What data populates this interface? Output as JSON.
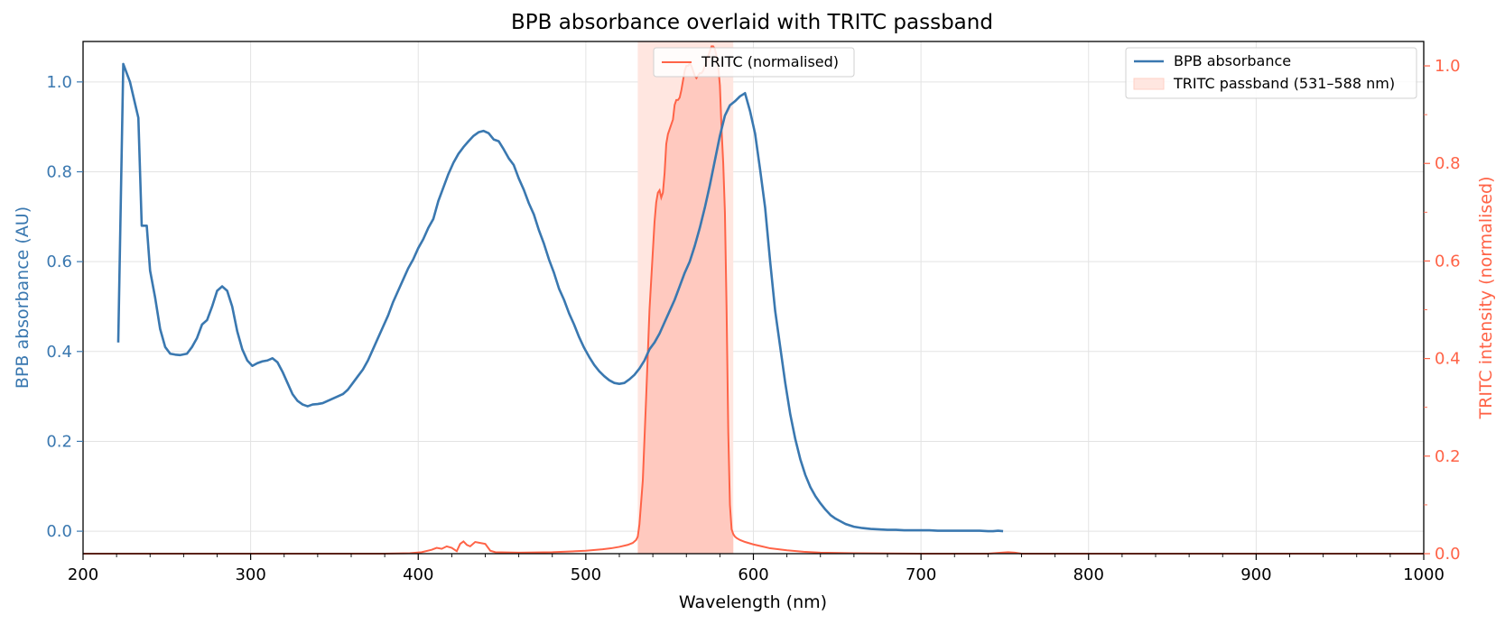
{
  "chart_data": {
    "type": "line",
    "title": "BPB absorbance overlaid with TRITC passband",
    "xlabel": "Wavelength (nm)",
    "ylabel_left": "BPB absorbance (AU)",
    "ylabel_right": "TRITC intensity (normalised)",
    "xlim": [
      200,
      1000
    ],
    "ylim_left": [
      -0.05,
      1.09
    ],
    "ylim_right": [
      0.0,
      1.05
    ],
    "x_ticks": [
      "200",
      "300",
      "400",
      "500",
      "600",
      "700",
      "800",
      "900",
      "1000"
    ],
    "y_left_ticks": [
      "0.0",
      "0.2",
      "0.4",
      "0.6",
      "0.8",
      "1.0"
    ],
    "y_right_ticks": [
      "0.0",
      "0.2",
      "0.4",
      "0.6",
      "0.8",
      "1.0"
    ],
    "grid": true,
    "colors": {
      "bpb": "#3a78b0",
      "tritc": "#ff6347",
      "band": "#ffe6e0",
      "fill": "#ffc9bf"
    },
    "passband": {
      "start": 531,
      "end": 588,
      "label": "TRITC passband (531–588 nm)"
    },
    "legend_left": {
      "placement": "upper-center",
      "entries": [
        "TRITC (normalised)"
      ]
    },
    "legend_right": {
      "placement": "upper-right",
      "entries": [
        "BPB absorbance",
        "TRITC passband (531–588 nm)"
      ]
    },
    "series": [
      {
        "name": "BPB absorbance",
        "axis": "left",
        "x": [
          221,
          224,
          228,
          233,
          235,
          238,
          240,
          243,
          246,
          249,
          252,
          255,
          258,
          262,
          265,
          268,
          271,
          274,
          277,
          280,
          283,
          286,
          289,
          292,
          295,
          298,
          301,
          304,
          307,
          310,
          313,
          316,
          319,
          322,
          325,
          328,
          331,
          334,
          337,
          340,
          343,
          346,
          349,
          352,
          355,
          358,
          361,
          364,
          367,
          370,
          373,
          376,
          379,
          382,
          385,
          388,
          391,
          394,
          397,
          400,
          403,
          406,
          409,
          412,
          415,
          418,
          421,
          424,
          427,
          430,
          433,
          436,
          439,
          442,
          445,
          448,
          451,
          454,
          457,
          460,
          463,
          466,
          469,
          472,
          475,
          478,
          481,
          484,
          487,
          490,
          493,
          496,
          499,
          502,
          505,
          508,
          511,
          514,
          517,
          520,
          523,
          526,
          529,
          532,
          535,
          538,
          541,
          544,
          547,
          550,
          553,
          556,
          559,
          562,
          565,
          568,
          571,
          574,
          577,
          580,
          583,
          586,
          589,
          592,
          595,
          598,
          601,
          604,
          607,
          610,
          613,
          616,
          619,
          622,
          625,
          628,
          631,
          634,
          637,
          640,
          643,
          646,
          649,
          652,
          655,
          660,
          665,
          670,
          675,
          680,
          685,
          690,
          695,
          700,
          705,
          710,
          715,
          720,
          725,
          730,
          735,
          740,
          743,
          746,
          749
        ],
        "y": [
          0.42,
          1.04,
          1.0,
          0.92,
          0.68,
          0.68,
          0.58,
          0.52,
          0.45,
          0.41,
          0.395,
          0.393,
          0.392,
          0.395,
          0.41,
          0.43,
          0.46,
          0.47,
          0.5,
          0.535,
          0.545,
          0.535,
          0.5,
          0.445,
          0.405,
          0.38,
          0.368,
          0.374,
          0.378,
          0.38,
          0.385,
          0.376,
          0.355,
          0.33,
          0.305,
          0.29,
          0.282,
          0.278,
          0.282,
          0.283,
          0.285,
          0.29,
          0.295,
          0.3,
          0.305,
          0.315,
          0.33,
          0.345,
          0.36,
          0.38,
          0.405,
          0.43,
          0.455,
          0.48,
          0.51,
          0.535,
          0.56,
          0.585,
          0.605,
          0.63,
          0.65,
          0.675,
          0.695,
          0.735,
          0.765,
          0.795,
          0.82,
          0.84,
          0.855,
          0.868,
          0.88,
          0.888,
          0.891,
          0.886,
          0.872,
          0.868,
          0.85,
          0.83,
          0.815,
          0.785,
          0.76,
          0.73,
          0.705,
          0.67,
          0.64,
          0.605,
          0.575,
          0.54,
          0.515,
          0.485,
          0.46,
          0.432,
          0.408,
          0.388,
          0.37,
          0.356,
          0.345,
          0.336,
          0.33,
          0.328,
          0.33,
          0.338,
          0.348,
          0.362,
          0.38,
          0.405,
          0.42,
          0.44,
          0.465,
          0.49,
          0.515,
          0.545,
          0.575,
          0.6,
          0.635,
          0.675,
          0.72,
          0.77,
          0.825,
          0.88,
          0.925,
          0.948,
          0.957,
          0.968,
          0.975,
          0.935,
          0.885,
          0.805,
          0.72,
          0.6,
          0.49,
          0.41,
          0.33,
          0.26,
          0.205,
          0.16,
          0.125,
          0.098,
          0.078,
          0.062,
          0.048,
          0.036,
          0.028,
          0.022,
          0.016,
          0.01,
          0.007,
          0.005,
          0.004,
          0.003,
          0.003,
          0.002,
          0.002,
          0.002,
          0.002,
          0.001,
          0.001,
          0.001,
          0.001,
          0.001,
          0.001,
          0.0,
          0.0,
          0.001,
          0.0
        ]
      },
      {
        "name": "TRITC (normalised)",
        "axis": "right",
        "x": [
          200,
          380,
          395,
          402,
          408,
          411,
          414,
          417,
          420,
          423,
          425,
          427,
          429,
          431,
          434,
          437,
          440,
          443,
          446,
          460,
          480,
          500,
          510,
          515,
          520,
          525,
          528,
          530,
          531,
          532,
          534,
          536,
          538,
          540,
          541,
          542,
          543,
          544,
          545,
          546,
          547,
          548,
          549,
          550,
          551,
          552,
          553,
          554,
          555,
          556,
          557,
          558,
          559,
          560,
          561,
          562,
          563,
          564,
          565,
          566,
          567,
          568,
          569,
          570,
          571,
          572,
          573,
          574,
          575,
          576,
          577,
          578,
          579,
          580,
          581,
          582,
          583,
          584,
          585,
          586,
          587,
          588,
          589,
          590,
          592,
          595,
          600,
          605,
          610,
          620,
          630,
          640,
          660,
          700,
          740,
          748,
          752,
          756,
          760,
          800,
          1000
        ],
        "y": [
          0.0,
          0.0,
          0.001,
          0.003,
          0.008,
          0.012,
          0.01,
          0.015,
          0.012,
          0.005,
          0.02,
          0.025,
          0.018,
          0.015,
          0.024,
          0.022,
          0.02,
          0.006,
          0.003,
          0.002,
          0.003,
          0.006,
          0.009,
          0.011,
          0.014,
          0.018,
          0.022,
          0.028,
          0.035,
          0.06,
          0.15,
          0.32,
          0.5,
          0.62,
          0.68,
          0.72,
          0.74,
          0.745,
          0.73,
          0.74,
          0.78,
          0.84,
          0.86,
          0.87,
          0.88,
          0.89,
          0.92,
          0.93,
          0.93,
          0.935,
          0.95,
          0.97,
          0.99,
          1.0,
          1.0,
          1.005,
          1.0,
          0.99,
          0.98,
          0.975,
          0.98,
          0.985,
          0.985,
          0.99,
          1.0,
          1.01,
          1.02,
          1.03,
          1.04,
          1.04,
          1.035,
          1.02,
          1.0,
          0.96,
          0.87,
          0.8,
          0.7,
          0.5,
          0.25,
          0.1,
          0.05,
          0.04,
          0.035,
          0.032,
          0.028,
          0.024,
          0.019,
          0.015,
          0.011,
          0.007,
          0.004,
          0.002,
          0.001,
          0.0,
          0.0,
          0.002,
          0.003,
          0.002,
          0.0,
          0.0,
          0.0
        ]
      }
    ]
  }
}
